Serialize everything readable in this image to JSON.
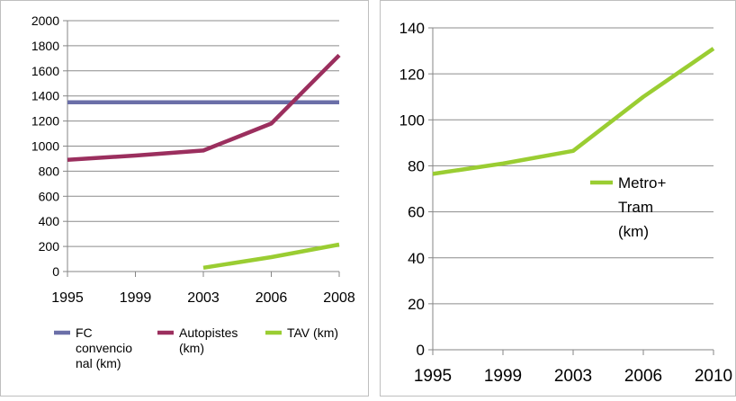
{
  "chart_data": [
    {
      "type": "line",
      "title": "",
      "xlabel": "",
      "ylabel": "",
      "categories": [
        "1995",
        "1999",
        "2003",
        "2006",
        "2008"
      ],
      "ylim": [
        0,
        2000
      ],
      "yticks": [
        0,
        200,
        400,
        600,
        800,
        1000,
        1200,
        1400,
        1600,
        1800,
        2000
      ],
      "grid": true,
      "legend": "bottom",
      "series": [
        {
          "name": "FC convencional (km)",
          "color": "#6B6FA8",
          "values": [
            1350,
            1350,
            1350,
            1350,
            1350
          ]
        },
        {
          "name": "Autopistes (km)",
          "color": "#9B2F5E",
          "values": [
            890,
            925,
            965,
            1180,
            1725
          ]
        },
        {
          "name": "TAV (km)",
          "color": "#9ACD32",
          "values": [
            null,
            null,
            30,
            115,
            215
          ]
        }
      ]
    },
    {
      "type": "line",
      "title": "",
      "xlabel": "",
      "ylabel": "",
      "categories": [
        "1995",
        "1999",
        "2003",
        "2006",
        "2010"
      ],
      "ylim": [
        0,
        140
      ],
      "yticks": [
        0,
        20,
        40,
        60,
        80,
        100,
        120,
        140
      ],
      "grid": true,
      "legend": "right",
      "series": [
        {
          "name": "Metro+ Tram (km)",
          "color": "#9ACD32",
          "values": [
            76.5,
            81,
            86.5,
            110,
            131
          ]
        }
      ]
    }
  ]
}
